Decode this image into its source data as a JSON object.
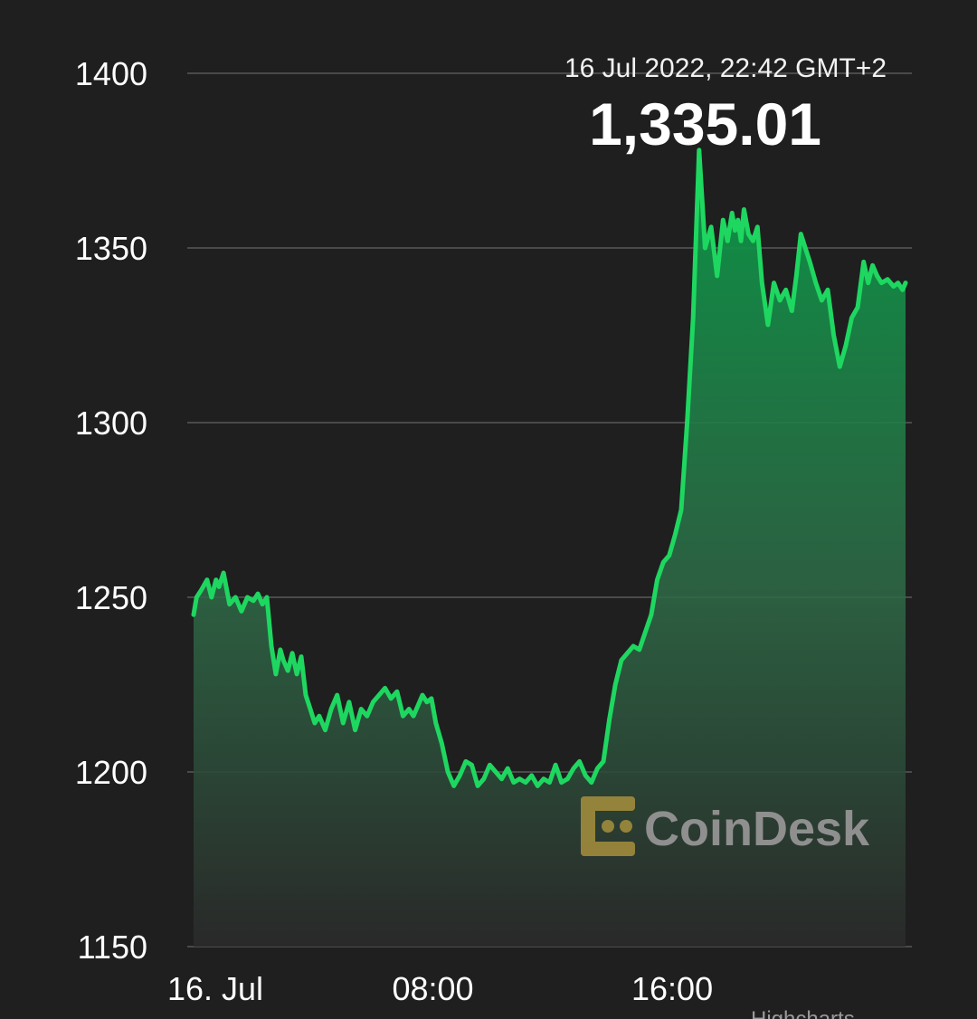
{
  "header": {
    "datetime": "16 Jul 2022, 22:42 GMT+2",
    "value": "1,335.01"
  },
  "watermark": {
    "text": "CoinDesk",
    "logo_color": "#a08b3c",
    "logo_icon": "coindesk-logo-icon"
  },
  "credits": {
    "text": "Highcharts"
  },
  "colors": {
    "background": "#1f1f1f",
    "line": "#1ed760",
    "grid": "#4a4a4a"
  },
  "chart_data": {
    "type": "area",
    "title": "",
    "xlabel": "",
    "ylabel": "",
    "ylim": [
      1150,
      1400
    ],
    "y_ticks": [
      1150,
      1200,
      1250,
      1300,
      1350,
      1400
    ],
    "x_ticks": [
      {
        "label": "16. Jul",
        "hour": 0
      },
      {
        "label": "08:00",
        "hour": 8
      },
      {
        "label": "16:00",
        "hour": 16
      }
    ],
    "x_range_hours": [
      0,
      23.8
    ],
    "grid": true,
    "legend": "none",
    "series": [
      {
        "x_hours": [
          0.0,
          0.1,
          0.25,
          0.45,
          0.6,
          0.75,
          0.85,
          1.0,
          1.2,
          1.4,
          1.6,
          1.8,
          2.0,
          2.15,
          2.3,
          2.45,
          2.6,
          2.75,
          2.9,
          3.0,
          3.15,
          3.3,
          3.45,
          3.6,
          3.75,
          3.9,
          4.05,
          4.2,
          4.4,
          4.6,
          4.8,
          5.0,
          5.2,
          5.4,
          5.6,
          5.8,
          6.0,
          6.2,
          6.4,
          6.6,
          6.8,
          7.0,
          7.2,
          7.35,
          7.5,
          7.65,
          7.8,
          7.95,
          8.1,
          8.3,
          8.5,
          8.7,
          8.9,
          9.1,
          9.3,
          9.5,
          9.7,
          9.9,
          10.1,
          10.3,
          10.5,
          10.7,
          10.9,
          11.1,
          11.3,
          11.5,
          11.7,
          11.9,
          12.1,
          12.3,
          12.5,
          12.7,
          12.9,
          13.1,
          13.3,
          13.5,
          13.7,
          13.9,
          14.1,
          14.3,
          14.5,
          14.7,
          14.9,
          15.1,
          15.3,
          15.5,
          15.7,
          15.9,
          16.1,
          16.3,
          16.5,
          16.7,
          16.9,
          17.1,
          17.3,
          17.5,
          17.7,
          17.85,
          18.0,
          18.1,
          18.2,
          18.3,
          18.4,
          18.55,
          18.7,
          18.85,
          19.0,
          19.2,
          19.4,
          19.6,
          19.8,
          20.0,
          20.15,
          20.3,
          20.45,
          20.6,
          20.8,
          21.0,
          21.2,
          21.4,
          21.6,
          21.8,
          22.0,
          22.2,
          22.4,
          22.55,
          22.7,
          22.85,
          23.0,
          23.2,
          23.4,
          23.55,
          23.7,
          23.8
        ],
        "values": [
          1245,
          1250,
          1252,
          1255,
          1250,
          1255,
          1253,
          1257,
          1248,
          1250,
          1246,
          1250,
          1249,
          1251,
          1248,
          1250,
          1236,
          1228,
          1235,
          1232,
          1229,
          1234,
          1228,
          1233,
          1222,
          1218,
          1214,
          1216,
          1212,
          1218,
          1222,
          1214,
          1220,
          1212,
          1218,
          1216,
          1220,
          1222,
          1224,
          1221,
          1223,
          1216,
          1218,
          1216,
          1219,
          1222,
          1220,
          1221,
          1214,
          1208,
          1200,
          1196,
          1199,
          1203,
          1202,
          1196,
          1198,
          1202,
          1200,
          1198,
          1201,
          1197,
          1198,
          1197,
          1199,
          1196,
          1198,
          1197,
          1202,
          1197,
          1198,
          1201,
          1203,
          1199,
          1197,
          1201,
          1203,
          1215,
          1225,
          1232,
          1234,
          1236,
          1235,
          1240,
          1245,
          1255,
          1260,
          1262,
          1268,
          1275,
          1300,
          1330,
          1378,
          1350,
          1356,
          1342,
          1358,
          1352,
          1360,
          1355,
          1358,
          1352,
          1361,
          1354,
          1352,
          1356,
          1340,
          1328,
          1340,
          1335,
          1338,
          1332,
          1342,
          1354,
          1350,
          1346,
          1340,
          1335,
          1338,
          1325,
          1316,
          1322,
          1330,
          1333,
          1346,
          1340,
          1345,
          1342,
          1340,
          1341,
          1339,
          1340,
          1338,
          1340
        ]
      }
    ]
  }
}
